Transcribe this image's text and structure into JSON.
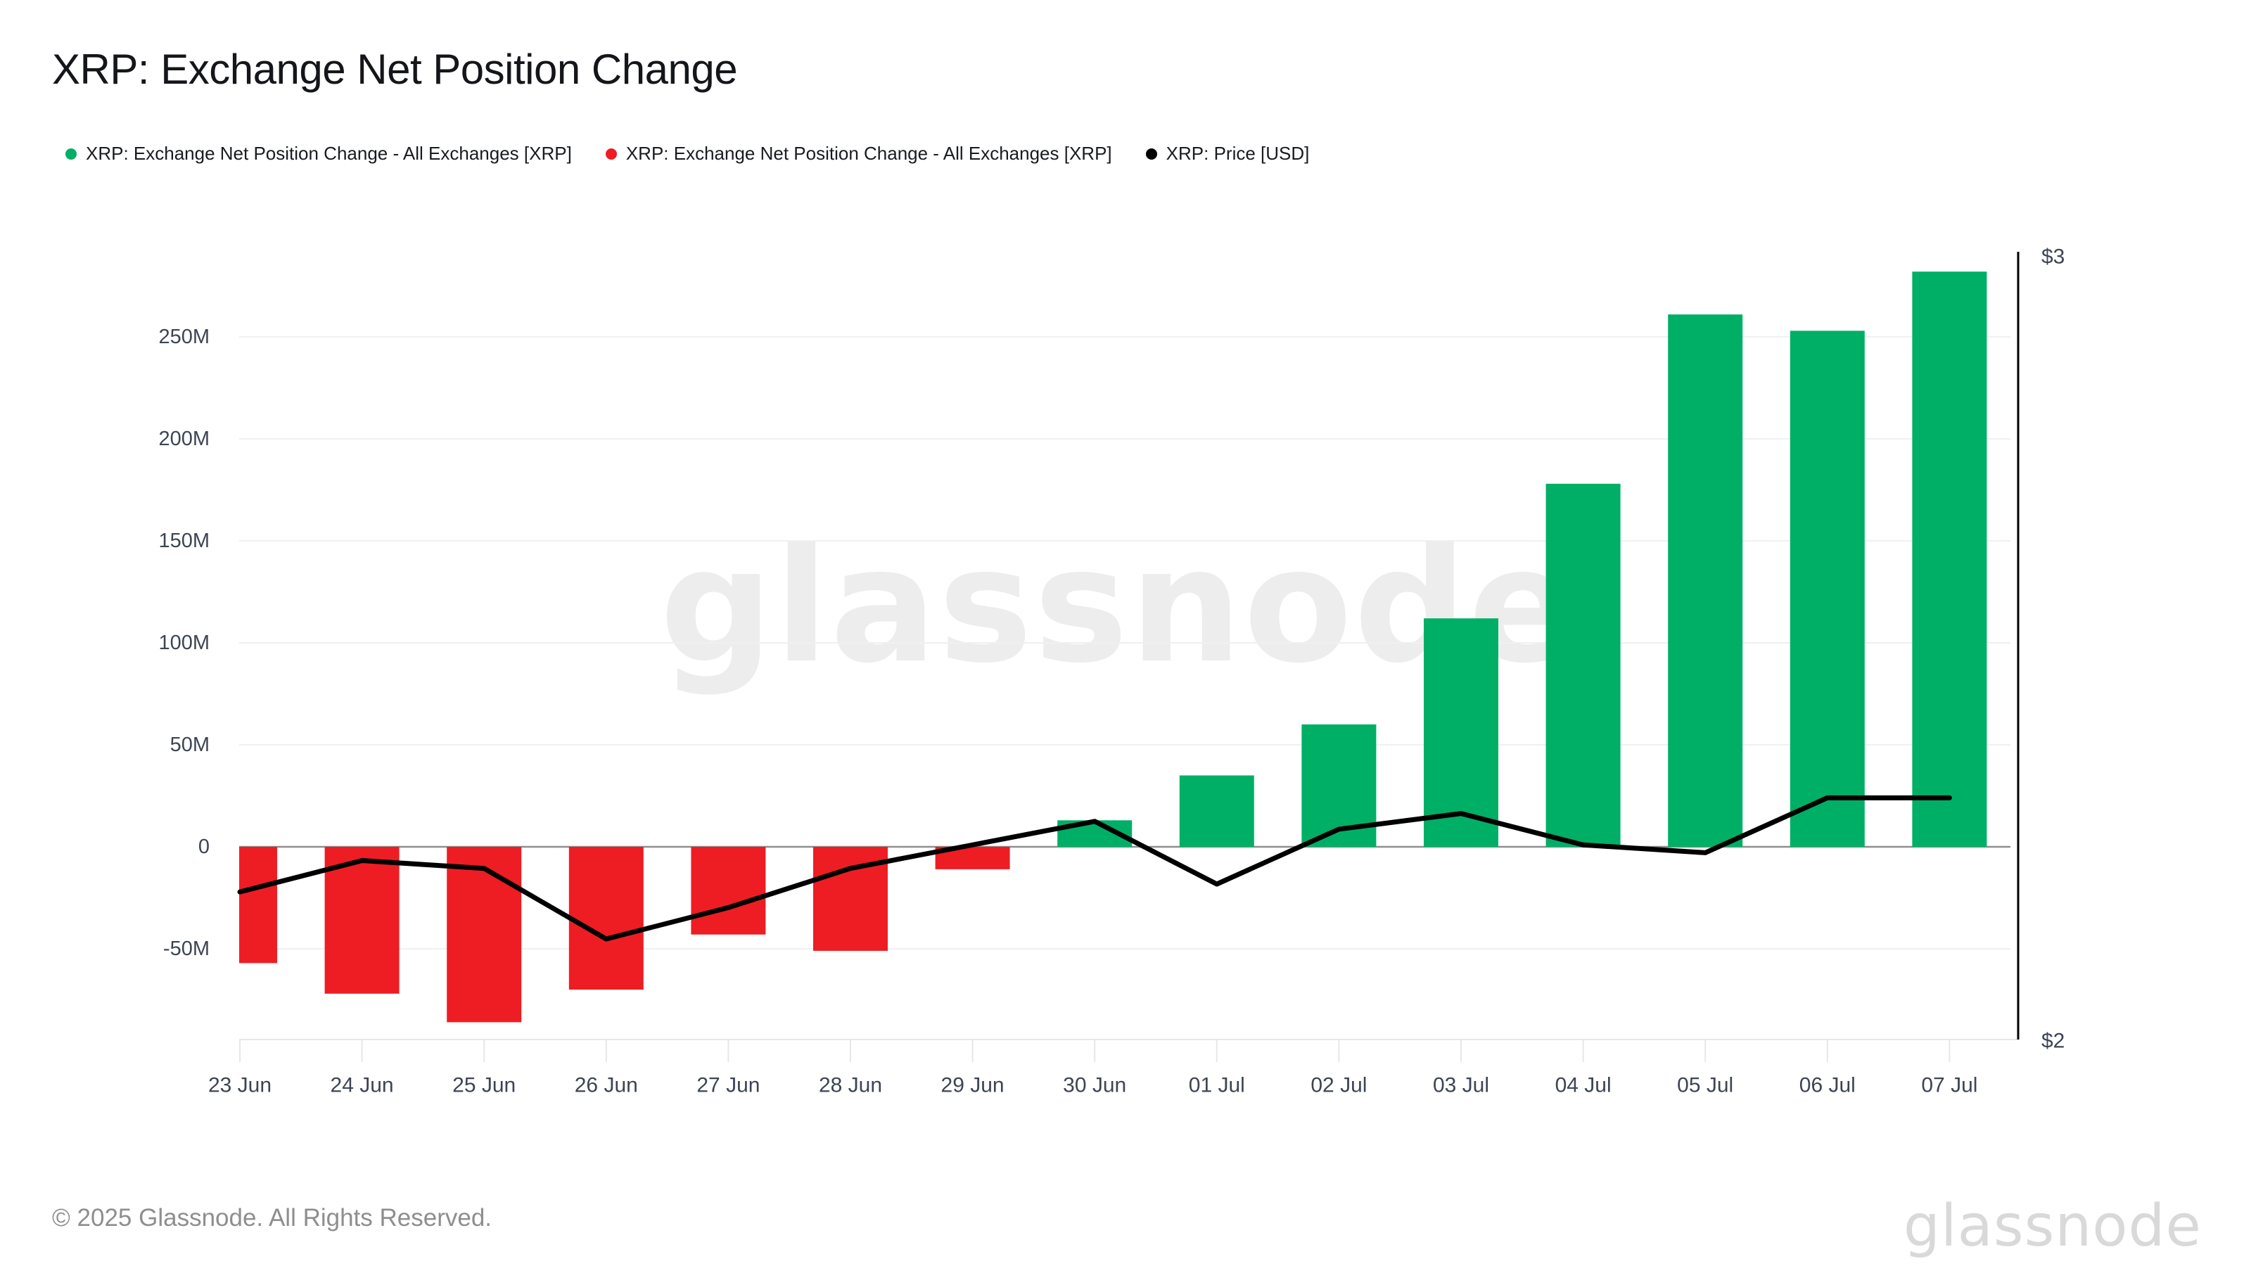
{
  "header": {
    "title": "XRP: Exchange Net Position Change"
  },
  "legend": {
    "items": [
      {
        "label": "XRP: Exchange Net Position Change - All Exchanges [XRP]",
        "color": "#00AF66"
      },
      {
        "label": "XRP: Exchange Net Position Change - All Exchanges [XRP]",
        "color": "#EE1D23"
      },
      {
        "label": "XRP: Price [USD]",
        "color": "#000000"
      }
    ]
  },
  "watermark": {
    "text": "glassnode",
    "color": "#EDEDED"
  },
  "footer": {
    "copyright": "© 2025 Glassnode. All Rights Reserved.",
    "logo": "glassnode"
  },
  "chart_data": {
    "type": "bar",
    "title": "XRP: Exchange Net Position Change",
    "categories": [
      "23 Jun",
      "24 Jun",
      "25 Jun",
      "26 Jun",
      "27 Jun",
      "28 Jun",
      "29 Jun",
      "30 Jun",
      "01 Jul",
      "02 Jul",
      "03 Jul",
      "04 Jul",
      "05 Jul",
      "06 Jul",
      "07 Jul"
    ],
    "series": [
      {
        "name": "XRP: Exchange Net Position Change - All Exchanges [XRP]",
        "type": "bar",
        "axis": "left",
        "unit": "XRP, millions",
        "values_millions": [
          -57,
          -72,
          -86,
          -70,
          -43,
          -51,
          -11,
          13,
          35,
          60,
          112,
          178,
          261,
          253,
          282
        ],
        "positive_color": "#00AF66",
        "negative_color": "#EE1D23"
      },
      {
        "name": "XRP: Price [USD]",
        "type": "line",
        "axis": "right",
        "unit": "USD",
        "values": [
          2.19,
          2.23,
          2.22,
          2.13,
          2.17,
          2.22,
          2.25,
          2.28,
          2.2,
          2.27,
          2.29,
          2.25,
          2.24,
          2.31,
          2.31
        ],
        "color": "#000000"
      }
    ],
    "left_axis": {
      "unit": "XRP",
      "ticks": [
        {
          "label": "250M",
          "value": 250
        },
        {
          "label": "200M",
          "value": 200
        },
        {
          "label": "150M",
          "value": 150
        },
        {
          "label": "100M",
          "value": 100
        },
        {
          "label": "50M",
          "value": 50
        },
        {
          "label": "0",
          "value": 0
        },
        {
          "label": "-50M",
          "value": -50
        }
      ]
    },
    "right_axis": {
      "unit": "USD",
      "min": 2,
      "max": 3,
      "ticks": [
        {
          "label": "$3",
          "value": 3
        },
        {
          "label": "$2",
          "value": 2
        }
      ]
    },
    "grid": "horizontal",
    "legend_position": "top-left"
  },
  "theme": {
    "background": "#FFFFFF",
    "grid_color": "#F0F0F0",
    "zero_line_color": "#8F8F8F",
    "baseline_color": "#E7E7E7",
    "axis_text_color": "#3D4453",
    "right_axis_line_color": "#000000"
  }
}
